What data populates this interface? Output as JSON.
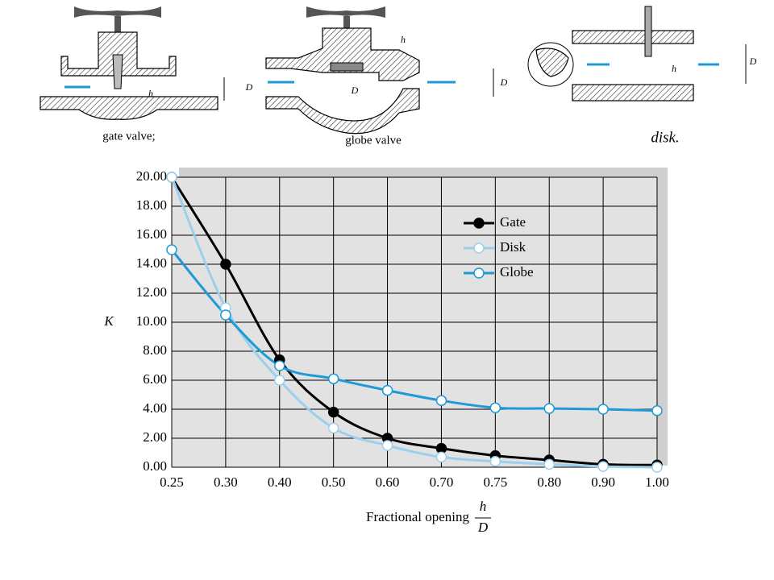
{
  "diagrams": [
    {
      "caption": "gate valve;",
      "labels": [
        "h",
        "D"
      ]
    },
    {
      "caption": "globe valve",
      "labels": [
        "h",
        "D",
        "D"
      ]
    },
    {
      "caption": "disk.",
      "labels": [
        "h",
        "D"
      ]
    }
  ],
  "chart_data": {
    "type": "line",
    "ylabel": "K",
    "xlabel": "Fractional opening",
    "xlabel_fraction": {
      "numerator": "h",
      "denominator": "D"
    },
    "categories": [
      "0.25",
      "0.30",
      "0.40",
      "0.50",
      "0.60",
      "0.70",
      "0.75",
      "0.80",
      "0.90",
      "1.00"
    ],
    "series": [
      {
        "name": "Gate",
        "color": "#000000",
        "marker_fill": "#000000",
        "values": [
          20,
          14,
          7.4,
          3.8,
          2.0,
          1.3,
          0.8,
          0.5,
          0.2,
          0.15
        ]
      },
      {
        "name": "Disk",
        "color": "#9ccfee",
        "marker_fill": "#ffffff",
        "values": [
          20,
          11,
          6,
          2.7,
          1.5,
          0.7,
          0.4,
          0.2,
          0.05,
          0
        ]
      },
      {
        "name": "Globe",
        "color": "#1e9ad6",
        "marker_fill": "#ffffff",
        "values": [
          15,
          10.5,
          7,
          6.1,
          5.3,
          4.6,
          4.1,
          4.05,
          4.0,
          3.9
        ]
      }
    ],
    "ylim": [
      0,
      20
    ],
    "yticks": [
      {
        "value": 0,
        "label": "0.00"
      },
      {
        "value": 2,
        "label": "2.00"
      },
      {
        "value": 4,
        "label": "4.00"
      },
      {
        "value": 6,
        "label": "6.00"
      },
      {
        "value": 8,
        "label": "8.00"
      },
      {
        "value": 10,
        "label": "10.00"
      },
      {
        "value": 12,
        "label": "12.00"
      },
      {
        "value": 14,
        "label": "14.00"
      },
      {
        "value": 16,
        "label": "16.00"
      },
      {
        "value": 18,
        "label": "18.00"
      },
      {
        "value": 20,
        "label": "20.00"
      }
    ],
    "grid": true,
    "legend": "upper right"
  }
}
